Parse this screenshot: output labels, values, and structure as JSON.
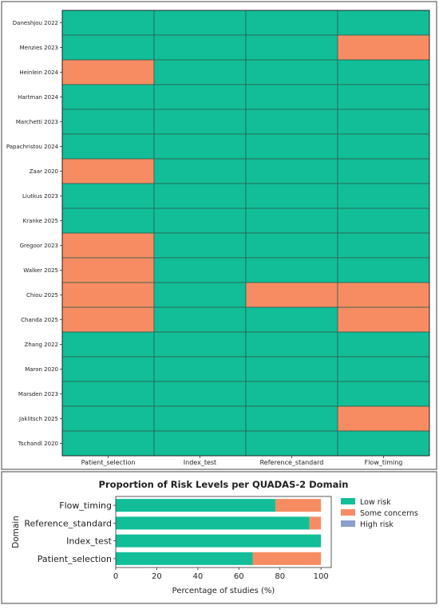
{
  "colors": {
    "low": "#11be98",
    "some": "#f78c62",
    "high": "#8a9fcb",
    "grid_line": "#2f5f52"
  },
  "chart_data": [
    {
      "type": "heatmap",
      "studies": [
        "Daneshjou 2022",
        "Menzies 2023",
        "Heinlein 2024",
        "Hartman 2024",
        "Marchetti 2023",
        "Papachristou 2024",
        "Zaar 2020",
        "Liutkus 2023",
        "Kranke 2025",
        "Gregoor 2023",
        "Walker 2025",
        "Chiou 2025",
        "Chanda 2025",
        "Zhang 2022",
        "Maron 2020",
        "Marsden 2023",
        "Jaklitsch 2025",
        "Tschandl 2020"
      ],
      "domains": [
        "Patient_selection",
        "Index_test",
        "Reference_standard",
        "Flow_timing"
      ],
      "ratings": [
        [
          "low",
          "low",
          "low",
          "low"
        ],
        [
          "low",
          "low",
          "low",
          "some"
        ],
        [
          "some",
          "low",
          "low",
          "low"
        ],
        [
          "low",
          "low",
          "low",
          "low"
        ],
        [
          "low",
          "low",
          "low",
          "low"
        ],
        [
          "low",
          "low",
          "low",
          "low"
        ],
        [
          "some",
          "low",
          "low",
          "low"
        ],
        [
          "low",
          "low",
          "low",
          "low"
        ],
        [
          "low",
          "low",
          "low",
          "low"
        ],
        [
          "some",
          "low",
          "low",
          "low"
        ],
        [
          "some",
          "low",
          "low",
          "low"
        ],
        [
          "some",
          "low",
          "some",
          "some"
        ],
        [
          "some",
          "low",
          "low",
          "some"
        ],
        [
          "low",
          "low",
          "low",
          "low"
        ],
        [
          "low",
          "low",
          "low",
          "low"
        ],
        [
          "low",
          "low",
          "low",
          "low"
        ],
        [
          "low",
          "low",
          "low",
          "some"
        ],
        [
          "low",
          "low",
          "low",
          "low"
        ]
      ]
    },
    {
      "type": "bar",
      "orientation": "horizontal",
      "stacked": true,
      "title": "Proportion of Risk Levels per QUADAS-2 Domain",
      "xlabel": "Percentage of studies (%)",
      "ylabel": "Domain",
      "xlim": [
        0,
        105
      ],
      "xticks": [
        0,
        20,
        40,
        60,
        80,
        100
      ],
      "categories": [
        "Flow_timing",
        "Reference_standard",
        "Index_test",
        "Patient_selection"
      ],
      "series": [
        {
          "name": "Low risk",
          "color_key": "low",
          "values": [
            77.8,
            94.4,
            100,
            66.7
          ]
        },
        {
          "name": "Some concerns",
          "color_key": "some",
          "values": [
            22.2,
            5.6,
            0,
            33.3
          ]
        },
        {
          "name": "High risk",
          "color_key": "high",
          "values": [
            0,
            0,
            0,
            0
          ]
        }
      ],
      "legend": "right"
    }
  ]
}
